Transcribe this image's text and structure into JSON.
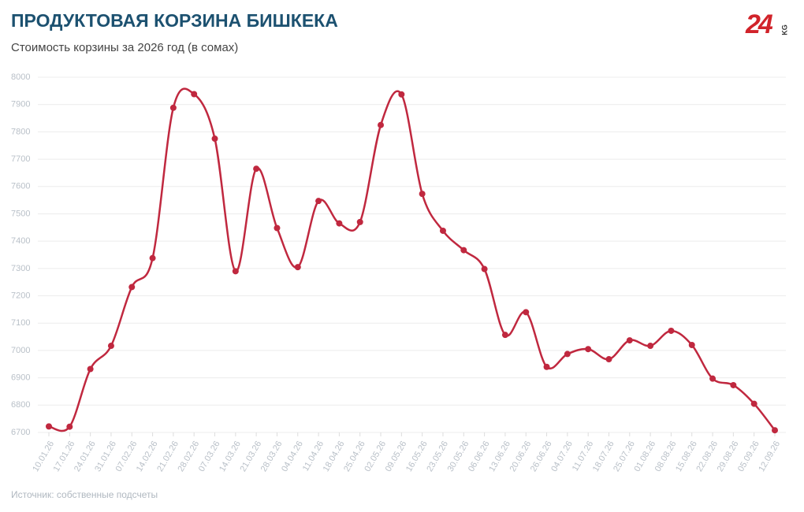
{
  "chart_data": {
    "type": "line",
    "title": "ПРОДУКТОВАЯ КОРЗИНА БИШКЕКА",
    "subtitle": "Стоимость корзины за 2026 год (в сомах)",
    "source": "Источник: собственные подсчеты",
    "logo": {
      "number": "24",
      "suffix": "KG"
    },
    "categories": [
      "10.01.26",
      "17.01.26",
      "24.01.26",
      "31.01.26",
      "07.02.26",
      "14.02.26",
      "21.02.26",
      "28.02.26",
      "07.03.26",
      "14.03.26",
      "21.03.26",
      "28.03.26",
      "04.04.26",
      "11.04.26",
      "18.04.26",
      "25.04.26",
      "02.05.26",
      "09.05.26",
      "16.05.26",
      "23.05.26",
      "30.05.26",
      "06.06.26",
      "13.06.26",
      "20.06.26",
      "26.06.26",
      "04.07.26",
      "11.07.26",
      "18.07.26",
      "25.07.26",
      "01.08.26",
      "08.08.26",
      "15.08.26",
      "22.08.26",
      "29.08.26",
      "05.09.26",
      "12.09.26"
    ],
    "series": [
      {
        "color": "#c0283f",
        "values": [
          6722,
          6721,
          6932,
          7017,
          7232,
          7338,
          7888,
          7938,
          7775,
          7290,
          7665,
          7448,
          7305,
          7547,
          7465,
          7470,
          7825,
          7937,
          7573,
          7438,
          7367,
          7298,
          7057,
          7140,
          6940,
          6987,
          7005,
          6968,
          7037,
          7017,
          7072,
          7020,
          6897,
          6873,
          6805,
          6708
        ]
      }
    ],
    "ylim": [
      6700,
      8000
    ],
    "yticks": [
      6700,
      6800,
      6900,
      7000,
      7100,
      7200,
      7300,
      7400,
      7500,
      7600,
      7700,
      7800,
      7900,
      8000
    ],
    "grid": true
  }
}
